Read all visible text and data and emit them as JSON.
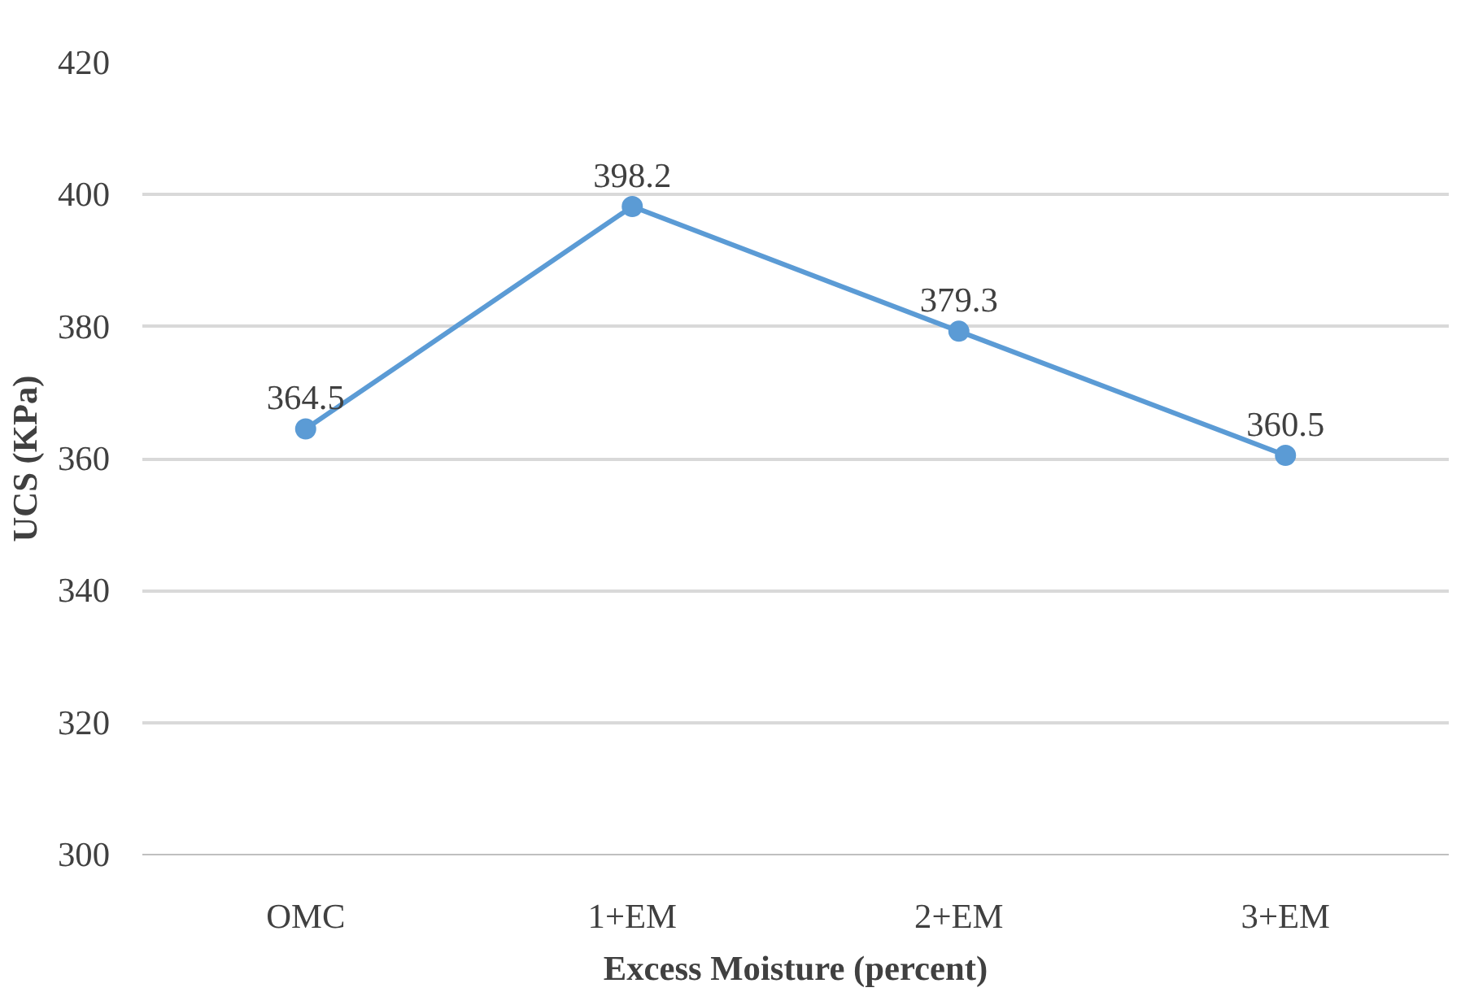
{
  "chart_data": {
    "type": "line",
    "xlabel": "Excess Moisture (percent)",
    "ylabel": "UCS (KPa)",
    "categories": [
      "OMC",
      "1+EM",
      "2+EM",
      "3+EM"
    ],
    "series": [
      {
        "color": "#5b9bd5",
        "values": [
          364.5,
          398.2,
          379.3,
          360.5
        ]
      }
    ],
    "ylim": [
      300,
      420
    ],
    "yticks": [
      300,
      320,
      340,
      360,
      380,
      400,
      420
    ],
    "grid": "y",
    "marker": "circle",
    "data_labels": true
  }
}
